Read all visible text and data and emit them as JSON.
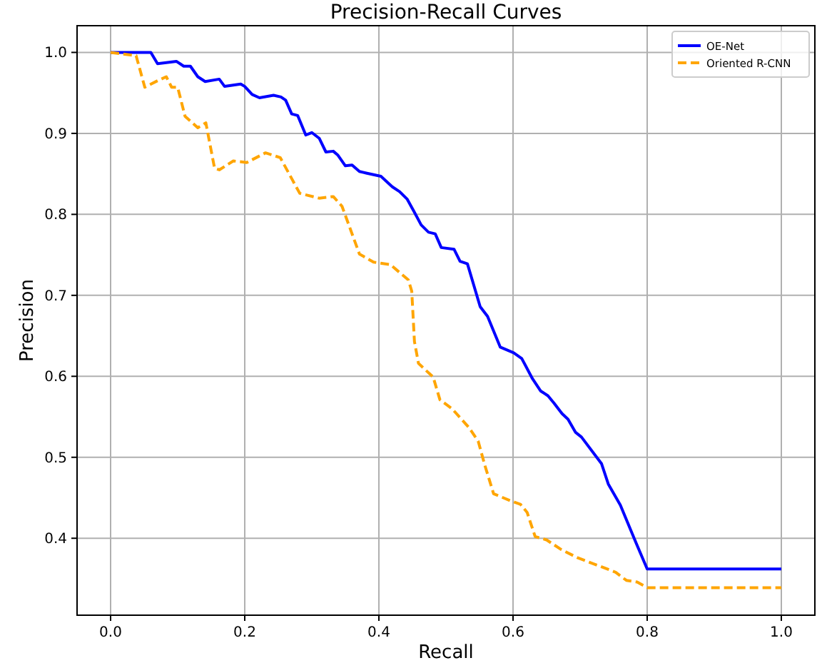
{
  "chart_data": {
    "type": "line",
    "title": "Precision-Recall Curves",
    "xlabel": "Recall",
    "ylabel": "Precision",
    "xlim": [
      -0.05,
      1.05
    ],
    "ylim": [
      0.305,
      1.033
    ],
    "xticks": [
      {
        "value": 0,
        "label": "0.0"
      },
      {
        "value": 0.2,
        "label": "0.2"
      },
      {
        "value": 0.4,
        "label": "0.4"
      },
      {
        "value": 0.6,
        "label": "0.6"
      },
      {
        "value": 0.8,
        "label": "0.8"
      },
      {
        "value": 1,
        "label": "1.0"
      }
    ],
    "yticks": [
      {
        "value": 0.4,
        "label": "0.4"
      },
      {
        "value": 0.5,
        "label": "0.5"
      },
      {
        "value": 0.6,
        "label": "0.6"
      },
      {
        "value": 0.7,
        "label": "0.7"
      },
      {
        "value": 0.8,
        "label": "0.8"
      },
      {
        "value": 0.9,
        "label": "0.9"
      },
      {
        "value": 1,
        "label": "1.0"
      }
    ],
    "grid": true,
    "legend": "top right",
    "marker": "none",
    "series": [
      {
        "name": "OE-Net",
        "color": "#0000ff",
        "line_style": "solid",
        "x": [
          0,
          0.06,
          0.07,
          0.098,
          0.109,
          0.119,
          0.13,
          0.141,
          0.162,
          0.17,
          0.194,
          0.2,
          0.211,
          0.222,
          0.243,
          0.254,
          0.261,
          0.27,
          0.279,
          0.291,
          0.3,
          0.311,
          0.321,
          0.332,
          0.339,
          0.35,
          0.36,
          0.371,
          0.381,
          0.403,
          0.42,
          0.431,
          0.442,
          0.452,
          0.463,
          0.474,
          0.484,
          0.493,
          0.512,
          0.521,
          0.532,
          0.551,
          0.562,
          0.581,
          0.601,
          0.613,
          0.629,
          0.641,
          0.652,
          0.661,
          0.673,
          0.682,
          0.693,
          0.702,
          0.732,
          0.742,
          0.76,
          0.781,
          0.8,
          1.0
        ],
        "values": [
          1.0,
          1.0,
          0.986,
          0.989,
          0.983,
          0.983,
          0.97,
          0.964,
          0.967,
          0.958,
          0.961,
          0.958,
          0.948,
          0.944,
          0.947,
          0.945,
          0.941,
          0.924,
          0.922,
          0.898,
          0.901,
          0.894,
          0.877,
          0.878,
          0.873,
          0.86,
          0.861,
          0.853,
          0.851,
          0.847,
          0.834,
          0.828,
          0.819,
          0.804,
          0.787,
          0.778,
          0.776,
          0.759,
          0.757,
          0.742,
          0.739,
          0.686,
          0.674,
          0.636,
          0.629,
          0.622,
          0.597,
          0.582,
          0.576,
          0.567,
          0.554,
          0.547,
          0.531,
          0.525,
          0.492,
          0.467,
          0.441,
          0.399,
          0.362,
          0.362
        ]
      },
      {
        "name": "Oriented R-CNN",
        "color": "#ffa500",
        "line_style": "dashed",
        "x": [
          0,
          0.038,
          0.051,
          0.07,
          0.083,
          0.091,
          0.1,
          0.111,
          0.13,
          0.142,
          0.155,
          0.162,
          0.183,
          0.203,
          0.231,
          0.253,
          0.282,
          0.311,
          0.332,
          0.345,
          0.371,
          0.392,
          0.417,
          0.444,
          0.449,
          0.453,
          0.459,
          0.481,
          0.491,
          0.509,
          0.534,
          0.548,
          0.558,
          0.571,
          0.597,
          0.611,
          0.621,
          0.633,
          0.65,
          0.672,
          0.696,
          0.728,
          0.753,
          0.769,
          0.785,
          0.8,
          1.0
        ],
        "values": [
          1.0,
          0.996,
          0.957,
          0.965,
          0.97,
          0.957,
          0.957,
          0.921,
          0.907,
          0.913,
          0.857,
          0.855,
          0.866,
          0.864,
          0.876,
          0.87,
          0.826,
          0.82,
          0.822,
          0.81,
          0.751,
          0.741,
          0.738,
          0.719,
          0.705,
          0.643,
          0.616,
          0.599,
          0.571,
          0.56,
          0.537,
          0.52,
          0.49,
          0.455,
          0.446,
          0.442,
          0.432,
          0.402,
          0.398,
          0.386,
          0.376,
          0.366,
          0.358,
          0.348,
          0.346,
          0.339,
          0.339
        ]
      }
    ]
  }
}
